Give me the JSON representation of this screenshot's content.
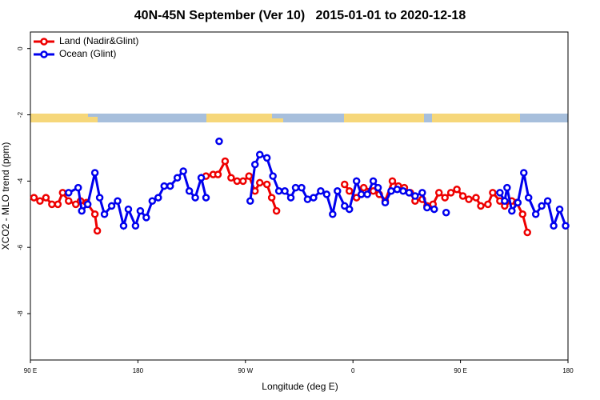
{
  "chart_data": {
    "type": "line",
    "title": "40N-45N September (Ver 10)   2015-01-01 to 2020-12-18",
    "x_label": "Longitude (deg E)",
    "y_label": "XCO2 - MLO trend (ppm)",
    "xlim": [
      90,
      540
    ],
    "xticks": [
      {
        "value": 90,
        "label": "90 E"
      },
      180,
      {
        "value": 270,
        "label": "90 W"
      },
      {
        "value": 360,
        "label": "0"
      },
      {
        "value": 450,
        "label": "90 E"
      },
      {
        "value": 540,
        "label": "180"
      }
    ],
    "ylim": [
      -9.4,
      0.5
    ],
    "yticks": [
      0,
      -2,
      -4,
      -6,
      -8
    ],
    "legend": "top-left",
    "series": [
      {
        "name": "Land (Nadir&Glint)",
        "color": "#ee0000",
        "x": [
          93,
          98,
          103,
          108,
          113,
          117,
          122,
          128,
          132,
          137,
          144,
          146,
          null,
          237,
          243,
          247,
          253,
          258,
          263,
          268,
          273,
          278,
          282,
          288,
          292,
          296,
          null,
          353,
          357,
          363,
          369,
          377,
          382,
          387,
          393,
          398,
          403,
          408,
          412,
          418,
          422,
          427,
          432,
          437,
          442,
          447,
          452,
          457,
          463,
          467,
          473,
          477,
          483,
          487,
          493,
          497,
          502,
          506
        ],
        "values": [
          -4.5,
          -4.6,
          -4.5,
          -4.7,
          -4.7,
          -4.35,
          -4.6,
          -4.7,
          -4.6,
          -4.65,
          -5.0,
          -5.5,
          null,
          -3.85,
          -3.8,
          -3.8,
          -3.4,
          -3.9,
          -4.0,
          -4.0,
          -3.85,
          -4.3,
          -4.05,
          -4.1,
          -4.5,
          -4.9,
          null,
          -4.1,
          -4.3,
          -4.5,
          -4.2,
          -4.3,
          -4.4,
          -4.6,
          -4.0,
          -4.15,
          -4.2,
          -4.35,
          -4.6,
          -4.55,
          -4.75,
          -4.7,
          -4.35,
          -4.5,
          -4.35,
          -4.25,
          -4.45,
          -4.55,
          -4.5,
          -4.75,
          -4.7,
          -4.35,
          -4.6,
          -4.75,
          -4.6,
          -4.65,
          -5.0,
          -5.55
        ]
      },
      {
        "name": "Ocean (Glint)",
        "color": "#0000ee",
        "x": [
          122,
          130,
          133,
          138,
          144,
          148,
          152,
          158,
          163,
          168,
          172,
          178,
          182,
          187,
          192,
          197,
          202,
          207,
          213,
          218,
          223,
          228,
          233,
          237,
          null,
          248,
          null,
          274,
          278,
          282,
          288,
          293,
          298,
          303,
          308,
          312,
          317,
          322,
          327,
          333,
          338,
          343,
          347,
          353,
          357,
          363,
          367,
          372,
          377,
          381,
          387,
          392,
          397,
          402,
          407,
          412,
          418,
          422,
          428,
          null,
          438,
          null,
          483,
          487,
          489,
          493,
          498,
          503,
          507,
          513,
          518,
          523,
          528,
          533,
          538
        ],
        "values": [
          -4.35,
          -4.2,
          -4.9,
          -4.7,
          -3.75,
          -4.5,
          -5.0,
          -4.75,
          -4.6,
          -5.35,
          -4.85,
          -5.35,
          -4.9,
          -5.1,
          -4.6,
          -4.5,
          -4.15,
          -4.15,
          -3.9,
          -3.7,
          -4.3,
          -4.5,
          -3.9,
          -4.5,
          null,
          -2.8,
          null,
          -4.6,
          -3.5,
          -3.2,
          -3.3,
          -3.85,
          -4.3,
          -4.3,
          -4.5,
          -4.2,
          -4.2,
          -4.55,
          -4.5,
          -4.3,
          -4.4,
          -5.0,
          -4.3,
          -4.75,
          -4.85,
          -4.0,
          -4.4,
          -4.4,
          -4.0,
          -4.2,
          -4.65,
          -4.3,
          -4.25,
          -4.3,
          -4.35,
          -4.45,
          -4.35,
          -4.8,
          -4.85,
          null,
          -4.95,
          null,
          -4.35,
          -4.6,
          -4.2,
          -4.9,
          -4.65,
          -3.75,
          -4.5,
          -5.0,
          -4.75,
          -4.6,
          -5.35,
          -4.85,
          -5.35
        ]
      }
    ]
  }
}
